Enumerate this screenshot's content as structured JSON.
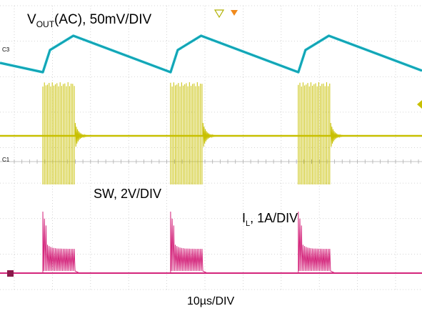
{
  "chart_data": {
    "type": "line",
    "title": "",
    "xlabel": "10µs/DIV",
    "ylabel": "",
    "grid": true,
    "divisions": {
      "x": 10,
      "y": 8
    },
    "series": [
      {
        "name": "VOUT(AC), 50mV/DIV",
        "label_main": "V",
        "label_sub": "OUT",
        "label_rest": "(AC), 50mV/DIV",
        "channel": "C3",
        "color": "#1bb5c6",
        "shape": "ramp",
        "ramp_up_us": 8,
        "ramp_down_us": 16,
        "period_us": 33.5
      },
      {
        "name": "SW, 2V/DIV",
        "label": "SW, 2V/DIV",
        "channel": "C1",
        "color": "#c8c000",
        "shape": "burst",
        "burst_on_us": 8.5,
        "period_us": 33.5
      },
      {
        "name": "IL, 1A/DIV",
        "label_main": "I",
        "label_sub": "L",
        "label_rest": ", 1A/DIV",
        "channel": "C4",
        "color": "#d4267c",
        "shape": "burst-current",
        "burst_on_us": 8.5,
        "period_us": 33.5
      }
    ],
    "burst_starts_us": [
      0,
      33.5,
      67
    ]
  },
  "markers": {
    "trigger_icon": "trigger-triangle-icon",
    "delay_icon": "delay-marker-icon"
  }
}
